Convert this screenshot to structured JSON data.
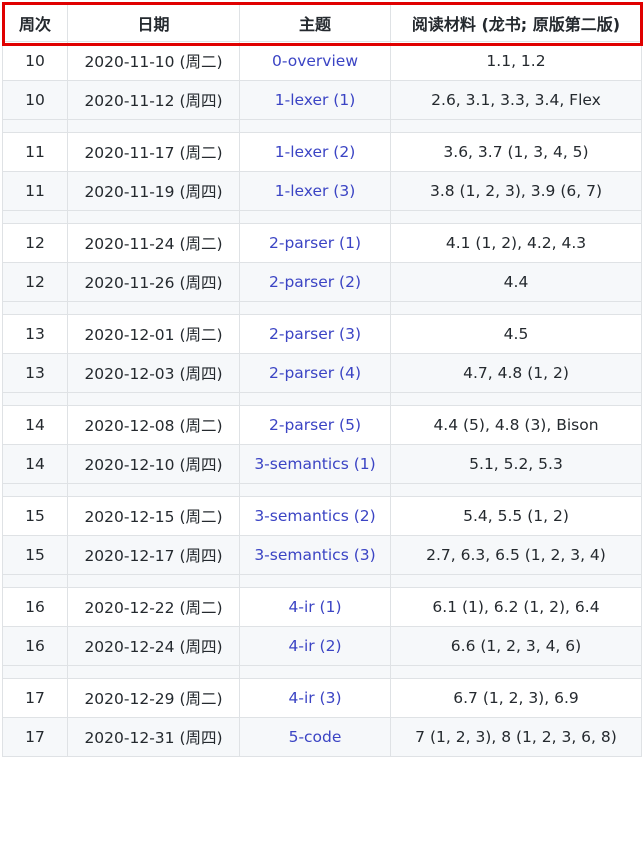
{
  "header": {
    "week": "周次",
    "date": "日期",
    "topic": "主题",
    "reading": "阅读材料 (龙书; 原版第二版)"
  },
  "rows": [
    {
      "type": "data",
      "week": "10",
      "date": "2020-11-10 (周二)",
      "topic": "0-overview",
      "reading": "1.1, 1.2"
    },
    {
      "type": "data",
      "week": "10",
      "date": "2020-11-12 (周四)",
      "topic": "1-lexer (1)",
      "reading": "2.6, 3.1, 3.3, 3.4, Flex"
    },
    {
      "type": "spacer"
    },
    {
      "type": "data",
      "week": "11",
      "date": "2020-11-17 (周二)",
      "topic": "1-lexer (2)",
      "reading": "3.6, 3.7 (1, 3, 4, 5)"
    },
    {
      "type": "data",
      "week": "11",
      "date": "2020-11-19 (周四)",
      "topic": "1-lexer (3)",
      "reading": "3.8 (1, 2, 3), 3.9 (6, 7)"
    },
    {
      "type": "spacer"
    },
    {
      "type": "data",
      "week": "12",
      "date": "2020-11-24 (周二)",
      "topic": "2-parser (1)",
      "reading": "4.1 (1, 2), 4.2, 4.3"
    },
    {
      "type": "data",
      "week": "12",
      "date": "2020-11-26 (周四)",
      "topic": "2-parser (2)",
      "reading": "4.4"
    },
    {
      "type": "spacer"
    },
    {
      "type": "data",
      "week": "13",
      "date": "2020-12-01 (周二)",
      "topic": "2-parser (3)",
      "reading": "4.5"
    },
    {
      "type": "data",
      "week": "13",
      "date": "2020-12-03 (周四)",
      "topic": "2-parser (4)",
      "reading": "4.7, 4.8 (1, 2)"
    },
    {
      "type": "spacer"
    },
    {
      "type": "data",
      "week": "14",
      "date": "2020-12-08 (周二)",
      "topic": "2-parser (5)",
      "reading": "4.4 (5), 4.8 (3), Bison"
    },
    {
      "type": "data",
      "week": "14",
      "date": "2020-12-10 (周四)",
      "topic": "3-semantics (1)",
      "reading": "5.1, 5.2, 5.3"
    },
    {
      "type": "spacer"
    },
    {
      "type": "data",
      "week": "15",
      "date": "2020-12-15 (周二)",
      "topic": "3-semantics (2)",
      "reading": "5.4, 5.5 (1, 2)"
    },
    {
      "type": "data",
      "week": "15",
      "date": "2020-12-17 (周四)",
      "topic": "3-semantics (3)",
      "reading": "2.7, 6.3, 6.5 (1, 2, 3, 4)"
    },
    {
      "type": "spacer"
    },
    {
      "type": "data",
      "week": "16",
      "date": "2020-12-22 (周二)",
      "topic": "4-ir (1)",
      "reading": "6.1 (1), 6.2 (1, 2), 6.4"
    },
    {
      "type": "data",
      "week": "16",
      "date": "2020-12-24 (周四)",
      "topic": "4-ir (2)",
      "reading": "6.6 (1, 2, 3, 4, 6)"
    },
    {
      "type": "spacer"
    },
    {
      "type": "data",
      "week": "17",
      "date": "2020-12-29 (周二)",
      "topic": "4-ir (3)",
      "reading": "6.7 (1, 2, 3), 6.9"
    },
    {
      "type": "data",
      "week": "17",
      "date": "2020-12-31 (周四)",
      "topic": "5-code",
      "reading": "7 (1, 2, 3), 8 (1, 2, 3, 6, 8)"
    }
  ],
  "colors": {
    "link": "#3b44c4",
    "highlight_border": "#e00000",
    "stripe": "#f6f8fa",
    "grid": "#dfe2e5"
  }
}
